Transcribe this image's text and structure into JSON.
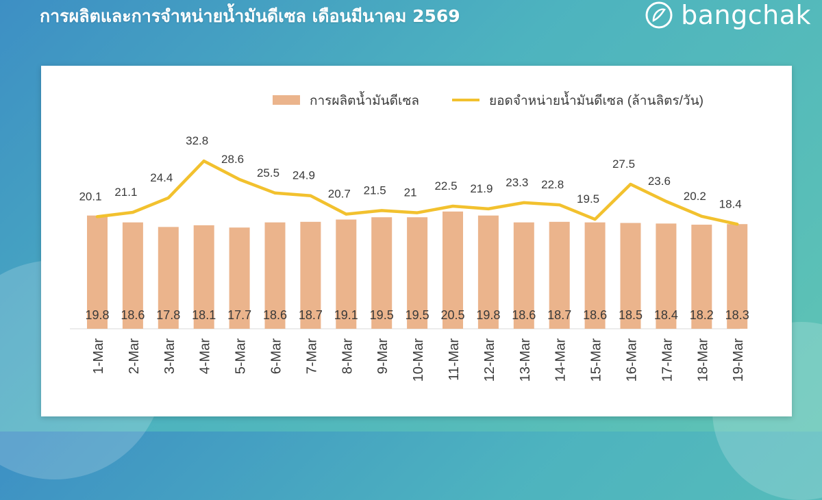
{
  "page": {
    "title": "การผลิตและการจำหน่ายน้ำมันดีเซล เดือนมีนาคม 2569",
    "brand": "bangchak"
  },
  "colors": {
    "bar": "#ebb48c",
    "line": "#f2c12e",
    "text": "#3a3a3a",
    "background_start": "#3d8fc4",
    "background_end": "#5fc4b4"
  },
  "chart_data": {
    "type": "bar",
    "categories": [
      "1-Mar",
      "2-Mar",
      "3-Mar",
      "4-Mar",
      "5-Mar",
      "6-Mar",
      "7-Mar",
      "8-Mar",
      "9-Mar",
      "10-Mar",
      "11-Mar",
      "12-Mar",
      "13-Mar",
      "14-Mar",
      "15-Mar",
      "16-Mar",
      "17-Mar",
      "18-Mar",
      "19-Mar"
    ],
    "series": [
      {
        "name": "การผลิตน้ำมันดีเซล",
        "type": "bar",
        "values": [
          19.8,
          18.6,
          17.8,
          18.1,
          17.7,
          18.6,
          18.7,
          19.1,
          19.5,
          19.5,
          20.5,
          19.8,
          18.6,
          18.7,
          18.6,
          18.5,
          18.4,
          18.2,
          18.3
        ],
        "labels": [
          "19.8",
          "18.6",
          "17.8",
          "18.1",
          "17.7",
          "18.6",
          "18.7",
          "19.1",
          "19.5",
          "19.5",
          "20.5",
          "19.8",
          "18.6",
          "18.7",
          "18.6",
          "18.5",
          "18.4",
          "18.2",
          "18.3"
        ]
      },
      {
        "name": "ยอดจำหน่ายน้ำมันดีเซล (ล้านลิตร/วัน)",
        "type": "line",
        "values": [
          20.1,
          21.1,
          24.4,
          32.8,
          28.6,
          25.5,
          24.9,
          20.7,
          21.5,
          21,
          22.5,
          21.9,
          23.3,
          22.8,
          19.5,
          27.5,
          23.6,
          20.2,
          18.4
        ],
        "labels": [
          "20.1",
          "21.1",
          "24.4",
          "32.8",
          "28.6",
          "25.5",
          "24.9",
          "20.7",
          "21.5",
          "21",
          "22.5",
          "21.9",
          "23.3",
          "22.8",
          "19.5",
          "27.5",
          "23.6",
          "20.2",
          "18.4"
        ]
      }
    ],
    "legend": "top-right",
    "grid": false
  }
}
